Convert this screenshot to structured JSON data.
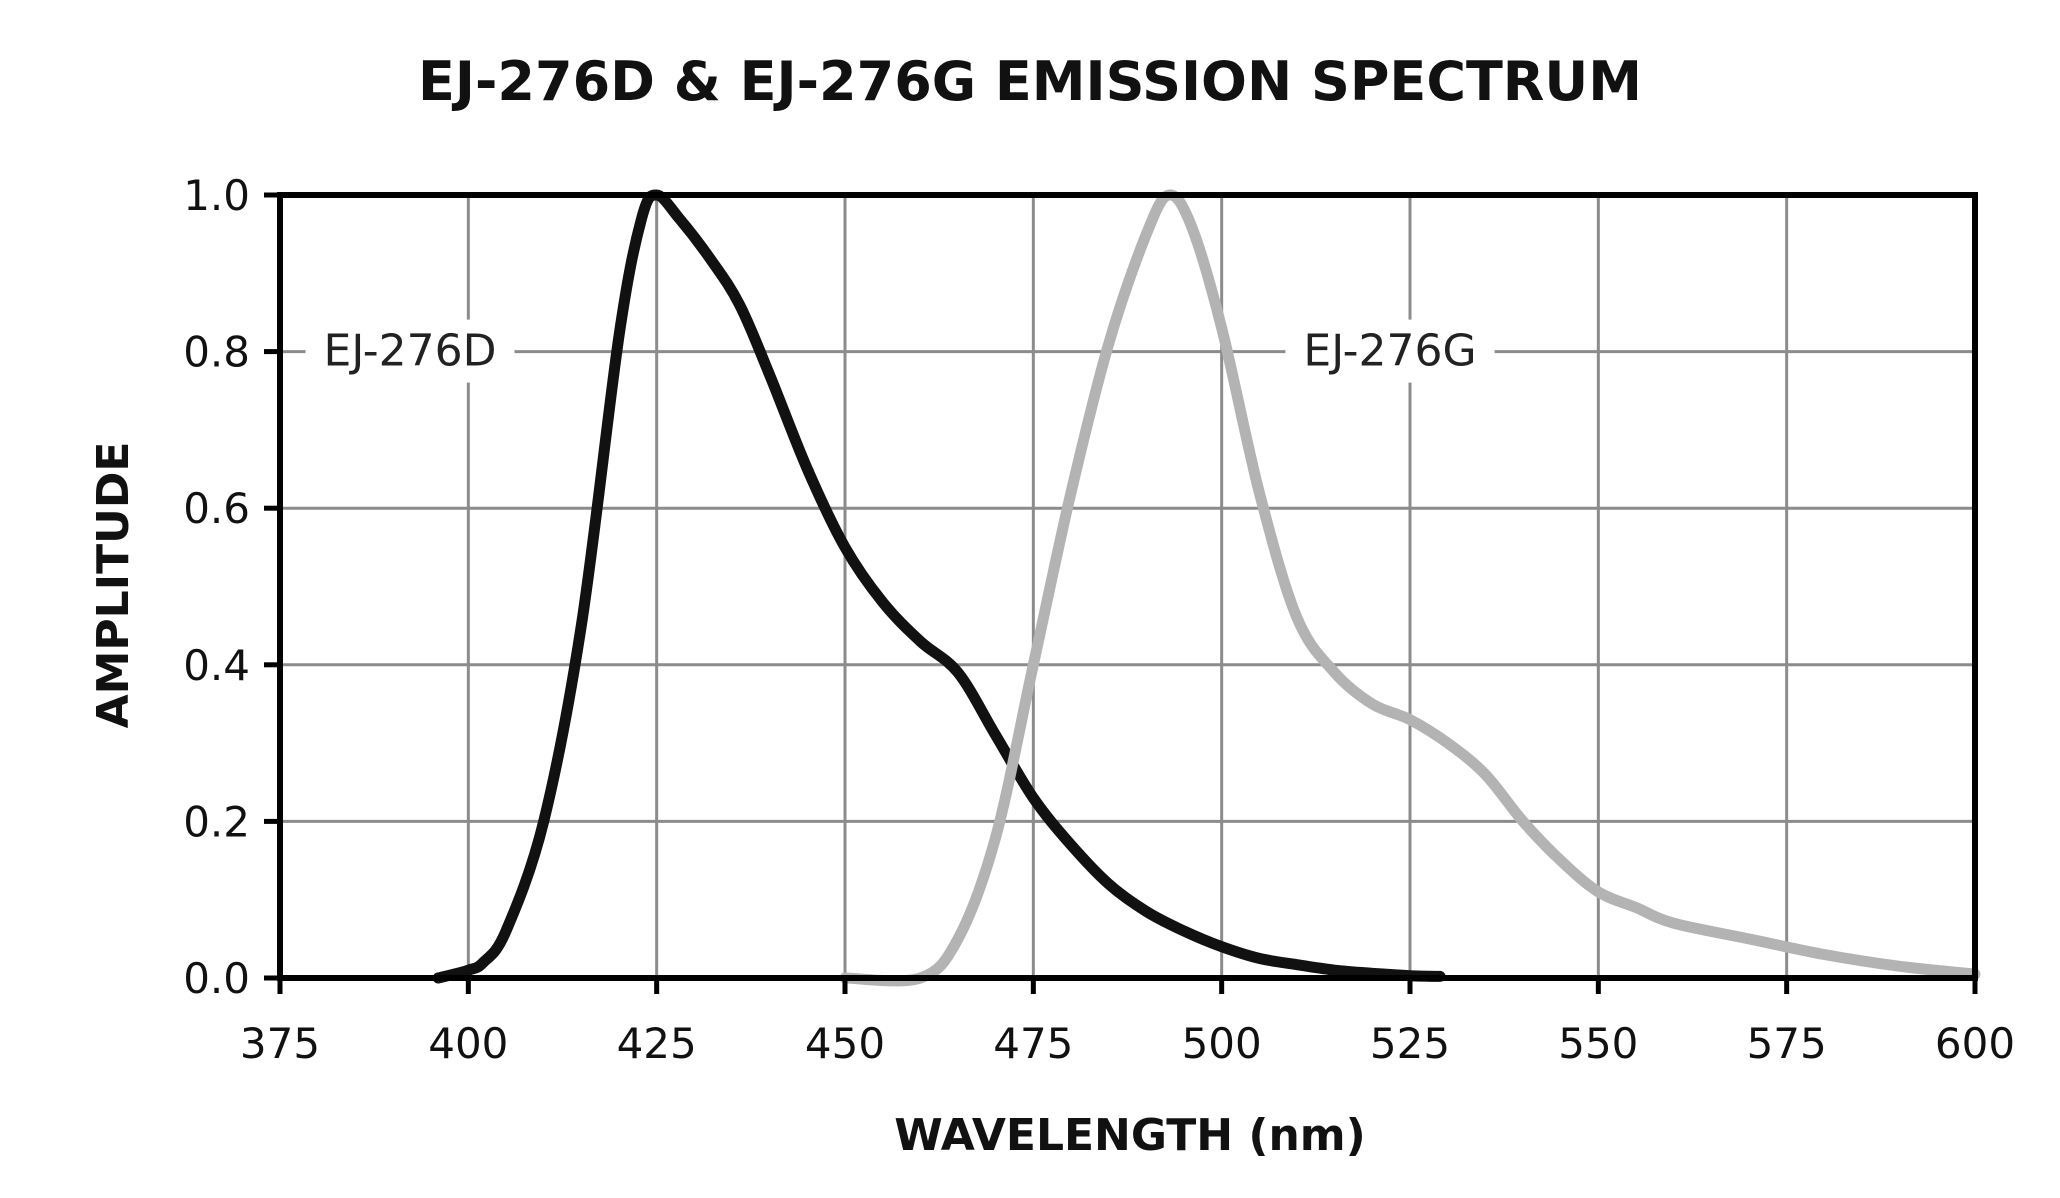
{
  "chart_data": {
    "type": "line",
    "title": "EJ-276D & EJ-276G EMISSION SPECTRUM",
    "xlabel": "WAVELENGTH (nm)",
    "ylabel": "AMPLITUDE",
    "xlim": [
      375,
      600
    ],
    "ylim": [
      0,
      1.0
    ],
    "x_ticks": [
      "375",
      "400",
      "425",
      "450",
      "475",
      "500",
      "525",
      "550",
      "575",
      "600"
    ],
    "y_ticks": [
      "0.0",
      "0.2",
      "0.4",
      "0.6",
      "0.8",
      "1.0"
    ],
    "grid": true,
    "series": [
      {
        "name": "EJ-276D",
        "color": "#111111",
        "x": [
          396,
          400,
          402,
          405,
          410,
          415,
          420,
          423,
          425,
          428,
          432,
          436,
          440,
          445,
          450,
          455,
          460,
          465,
          470,
          475,
          480,
          485,
          490,
          495,
          500,
          505,
          510,
          515,
          520,
          525,
          529
        ],
        "y": [
          0.0,
          0.01,
          0.02,
          0.06,
          0.2,
          0.45,
          0.82,
          0.97,
          1.0,
          0.97,
          0.92,
          0.86,
          0.77,
          0.65,
          0.55,
          0.48,
          0.43,
          0.39,
          0.31,
          0.23,
          0.17,
          0.12,
          0.085,
          0.06,
          0.04,
          0.025,
          0.017,
          0.01,
          0.006,
          0.003,
          0.002
        ]
      },
      {
        "name": "EJ-276G",
        "color": "#b3b3b3",
        "x": [
          450,
          460,
          465,
          470,
          475,
          480,
          485,
          490,
          493,
          496,
          500,
          505,
          510,
          515,
          520,
          525,
          530,
          535,
          540,
          545,
          550,
          555,
          560,
          570,
          580,
          590,
          600
        ],
        "y": [
          0.0,
          0.0,
          0.05,
          0.18,
          0.4,
          0.62,
          0.81,
          0.95,
          1.0,
          0.96,
          0.83,
          0.62,
          0.46,
          0.39,
          0.35,
          0.33,
          0.3,
          0.26,
          0.2,
          0.15,
          0.11,
          0.09,
          0.07,
          0.05,
          0.03,
          0.015,
          0.005
        ]
      }
    ]
  }
}
